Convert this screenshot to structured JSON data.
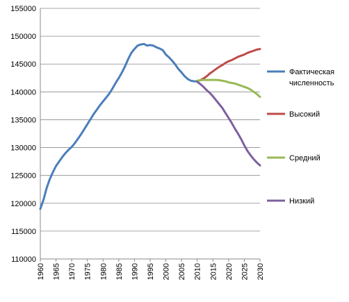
{
  "chart_data": {
    "type": "line",
    "title": "",
    "xlabel": "",
    "ylabel": "",
    "xlim": [
      1960,
      2030
    ],
    "ylim": [
      110000,
      155000
    ],
    "x_ticks": [
      "1960",
      "1965",
      "1970",
      "1975",
      "1980",
      "1985",
      "1990",
      "1995",
      "2000",
      "2005",
      "2010",
      "2015",
      "2020",
      "2025",
      "2030"
    ],
    "y_ticks": [
      "110000",
      "115000",
      "120000",
      "125000",
      "130000",
      "135000",
      "140000",
      "145000",
      "150000",
      "155000"
    ],
    "grid": "horizontal",
    "legend_position": "right",
    "series": [
      {
        "name": "Фактическая численность",
        "color": "#4A7EBB",
        "points": [
          [
            1960,
            119000
          ],
          [
            1961,
            120600
          ],
          [
            1962,
            122700
          ],
          [
            1963,
            124300
          ],
          [
            1964,
            125600
          ],
          [
            1965,
            126700
          ],
          [
            1966,
            127500
          ],
          [
            1967,
            128300
          ],
          [
            1968,
            129000
          ],
          [
            1969,
            129600
          ],
          [
            1970,
            130100
          ],
          [
            1971,
            130800
          ],
          [
            1972,
            131600
          ],
          [
            1973,
            132400
          ],
          [
            1974,
            133300
          ],
          [
            1975,
            134200
          ],
          [
            1976,
            135100
          ],
          [
            1977,
            136000
          ],
          [
            1978,
            136800
          ],
          [
            1979,
            137600
          ],
          [
            1980,
            138300
          ],
          [
            1981,
            139000
          ],
          [
            1982,
            139700
          ],
          [
            1983,
            140600
          ],
          [
            1984,
            141600
          ],
          [
            1985,
            142500
          ],
          [
            1986,
            143500
          ],
          [
            1987,
            144600
          ],
          [
            1988,
            145900
          ],
          [
            1989,
            147000
          ],
          [
            1990,
            147700
          ],
          [
            1991,
            148300
          ],
          [
            1992,
            148500
          ],
          [
            1993,
            148600
          ],
          [
            1994,
            148300
          ],
          [
            1995,
            148400
          ],
          [
            1996,
            148300
          ],
          [
            1997,
            148000
          ],
          [
            1998,
            147800
          ],
          [
            1999,
            147500
          ],
          [
            2000,
            146700
          ],
          [
            2001,
            146200
          ],
          [
            2002,
            145600
          ],
          [
            2003,
            144900
          ],
          [
            2004,
            144100
          ],
          [
            2005,
            143500
          ],
          [
            2006,
            142800
          ],
          [
            2007,
            142300
          ],
          [
            2008,
            142000
          ],
          [
            2009,
            141900
          ],
          [
            2010,
            141900
          ]
        ]
      },
      {
        "name": "Высокий",
        "color": "#BE4B48",
        "points": [
          [
            2010,
            141950
          ],
          [
            2011,
            142100
          ],
          [
            2012,
            142400
          ],
          [
            2013,
            142800
          ],
          [
            2014,
            143300
          ],
          [
            2015,
            143700
          ],
          [
            2016,
            144100
          ],
          [
            2017,
            144500
          ],
          [
            2018,
            144800
          ],
          [
            2019,
            145200
          ],
          [
            2020,
            145500
          ],
          [
            2021,
            145700
          ],
          [
            2022,
            146000
          ],
          [
            2023,
            146300
          ],
          [
            2024,
            146500
          ],
          [
            2025,
            146700
          ],
          [
            2026,
            147000
          ],
          [
            2027,
            147200
          ],
          [
            2028,
            147400
          ],
          [
            2029,
            147600
          ],
          [
            2030,
            147700
          ]
        ]
      },
      {
        "name": "Средний",
        "color": "#98B954",
        "points": [
          [
            2010,
            142000
          ],
          [
            2011,
            142100
          ],
          [
            2012,
            142150
          ],
          [
            2013,
            142150
          ],
          [
            2014,
            142150
          ],
          [
            2015,
            142150
          ],
          [
            2016,
            142150
          ],
          [
            2017,
            142100
          ],
          [
            2018,
            142000
          ],
          [
            2019,
            141900
          ],
          [
            2020,
            141700
          ],
          [
            2021,
            141600
          ],
          [
            2022,
            141500
          ],
          [
            2023,
            141300
          ],
          [
            2024,
            141100
          ],
          [
            2025,
            140900
          ],
          [
            2026,
            140700
          ],
          [
            2027,
            140400
          ],
          [
            2028,
            140000
          ],
          [
            2029,
            139600
          ],
          [
            2030,
            139100
          ]
        ]
      },
      {
        "name": "Низкий",
        "color": "#7D60A0",
        "points": [
          [
            2010,
            141800
          ],
          [
            2011,
            141400
          ],
          [
            2012,
            140900
          ],
          [
            2013,
            140300
          ],
          [
            2014,
            139800
          ],
          [
            2015,
            139200
          ],
          [
            2016,
            138500
          ],
          [
            2017,
            137800
          ],
          [
            2018,
            137100
          ],
          [
            2019,
            136200
          ],
          [
            2020,
            135300
          ],
          [
            2021,
            134400
          ],
          [
            2022,
            133400
          ],
          [
            2023,
            132500
          ],
          [
            2024,
            131500
          ],
          [
            2025,
            130400
          ],
          [
            2026,
            129400
          ],
          [
            2027,
            128600
          ],
          [
            2028,
            127900
          ],
          [
            2029,
            127300
          ],
          [
            2030,
            126800
          ]
        ]
      }
    ]
  }
}
